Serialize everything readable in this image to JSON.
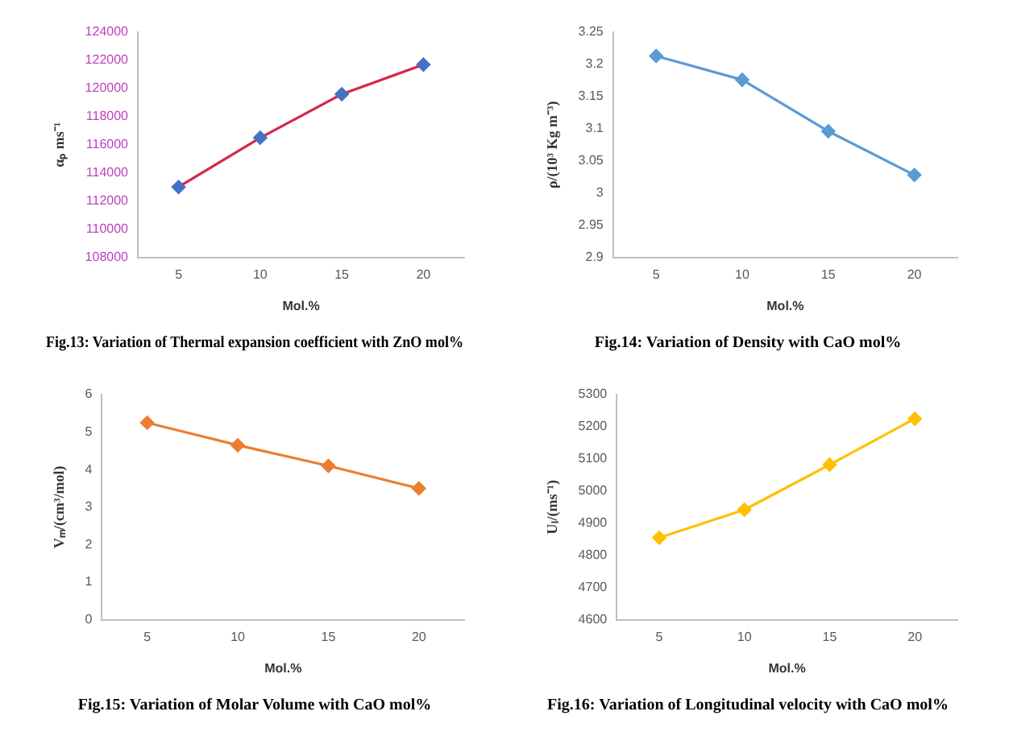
{
  "chart_data": [
    {
      "type": "line",
      "title": "Fig.13: Variation of Thermal expansion coefficient with ZnO mol%",
      "xlabel": "Mol.%",
      "ylabel": "αₚ ms⁻¹",
      "categories": [
        "5",
        "10",
        "15",
        "20"
      ],
      "series": [
        {
          "color": "#d6264a",
          "colors": [
            "#4472c4",
            "#4472c4",
            "#4472c4",
            "#4472c4"
          ],
          "values": [
            113000,
            116500,
            119600,
            121700
          ]
        }
      ],
      "ylim": [
        108000,
        124000
      ],
      "yticks": [
        108000,
        110000,
        112000,
        114000,
        116000,
        118000,
        120000,
        122000,
        124000
      ],
      "grid": false,
      "legend": false,
      "marker": "diamond",
      "line_style": "solid"
    },
    {
      "type": "line",
      "title": "Fig.14: Variation of Density with CaO mol%",
      "xlabel": "Mol.%",
      "ylabel": "ρ/(10³ Kg m⁻³)",
      "categories": [
        "5",
        "10",
        "15",
        "20"
      ],
      "series": [
        {
          "color": "#5b9bd5",
          "values": [
            3.213,
            3.176,
            3.096,
            3.028
          ]
        }
      ],
      "ylim": [
        2.9,
        3.25
      ],
      "yticks": [
        {
          "value": 2.9,
          "label": "2.9"
        },
        2.95,
        {
          "value": 3,
          "label": "3"
        },
        3.05,
        {
          "value": 3.1,
          "label": "3.1"
        },
        3.15,
        {
          "value": 3.2,
          "label": "3.2"
        },
        3.25
      ],
      "grid": false,
      "legend": false,
      "marker": "diamond",
      "line_style": "solid"
    },
    {
      "type": "line",
      "title": "Fig.15: Variation of Molar Volume with CaO mol%",
      "xlabel": "Mol.%",
      "ylabel": "Vₘ/(cm³/mol)",
      "categories": [
        "5",
        "10",
        "15",
        "20"
      ],
      "series": [
        {
          "color": "#ed7d31",
          "values": [
            5.25,
            4.65,
            4.1,
            3.5
          ]
        }
      ],
      "ylim": [
        0,
        6
      ],
      "yticks": [
        0,
        1,
        2,
        3,
        4,
        5,
        6
      ],
      "grid": false,
      "legend": false,
      "marker": "diamond",
      "line_style": "solid"
    },
    {
      "type": "line",
      "title": "Fig.16: Variation of Longitudinal velocity with CaO mol%",
      "xlabel": "Mol.%",
      "ylabel": "Uₗ/(ms⁻¹)",
      "categories": [
        "5",
        "10",
        "15",
        "20"
      ],
      "series": [
        {
          "color": "#ffc000",
          "values": [
            4855,
            4942,
            5082,
            5225
          ]
        }
      ],
      "ylim": [
        4600,
        5300
      ],
      "yticks": [
        4600,
        4700,
        4800,
        4900,
        5000,
        5100,
        5200,
        5300
      ],
      "grid": false,
      "legend": false,
      "marker": "diamond",
      "line_style": "solid"
    }
  ]
}
